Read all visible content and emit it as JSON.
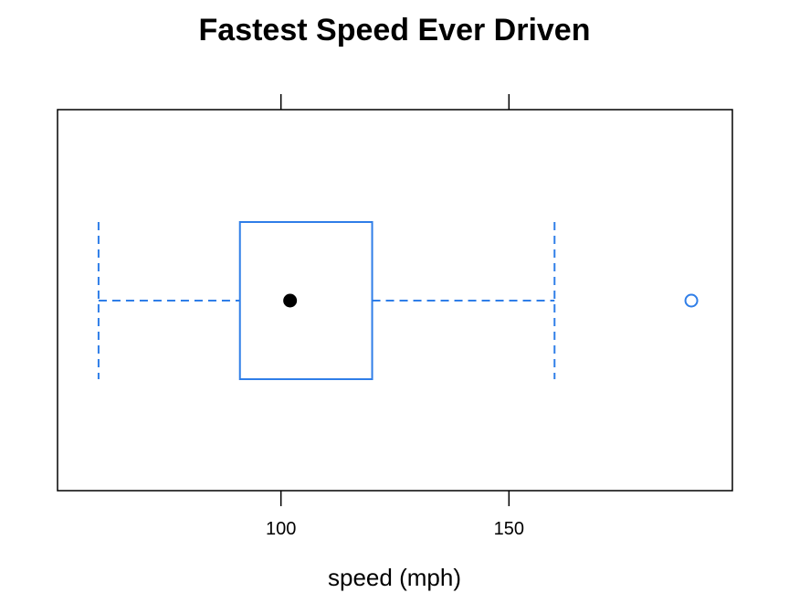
{
  "chart_data": {
    "type": "boxplot",
    "orientation": "horizontal",
    "title": "Fastest Speed Ever Driven",
    "xlabel": "speed (mph)",
    "ylabel": "",
    "xlim": [
      51,
      199
    ],
    "xticks": [
      100,
      150
    ],
    "tick_labels": [
      "100",
      "150"
    ],
    "grid": false,
    "box": {
      "whisker_low": 60,
      "q1": 91,
      "median": 102,
      "q3": 120,
      "whisker_high": 160
    },
    "outliers": [
      190
    ],
    "colors": {
      "box": "#2f7ee8",
      "median_dot": "#000000",
      "frame": "#000000"
    }
  }
}
